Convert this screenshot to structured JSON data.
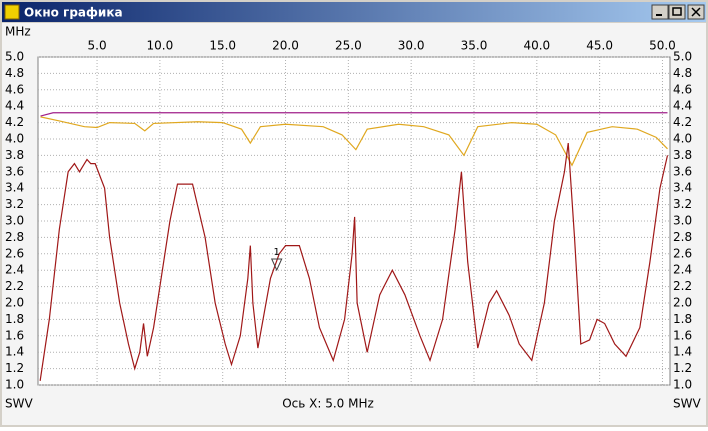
{
  "window": {
    "title": "Окно графика"
  },
  "chart_data": {
    "type": "line",
    "x_label": "MHz",
    "y_label": "SWV",
    "status": "Ось X: 5.0 MHz",
    "xlim": [
      0.3,
      50.6
    ],
    "ylim": [
      1.0,
      5.0
    ],
    "xticks": [
      {
        "value": 5,
        "label": "5.0"
      },
      {
        "value": 10,
        "label": "10.0"
      },
      {
        "value": 15,
        "label": "15.0"
      },
      {
        "value": 20,
        "label": "20.0"
      },
      {
        "value": 25,
        "label": "25.0"
      },
      {
        "value": 30,
        "label": "30.0"
      },
      {
        "value": 35,
        "label": "35.0"
      },
      {
        "value": 40,
        "label": "40.0"
      },
      {
        "value": 45,
        "label": "45.0"
      },
      {
        "value": 50,
        "label": "50.0"
      }
    ],
    "yticks": [
      {
        "value": 1,
        "label": "1.0"
      },
      1.2,
      1.4,
      1.6,
      1.8,
      {
        "value": 2,
        "label": "2.0"
      },
      2.2,
      2.4,
      2.6,
      2.8,
      {
        "value": 3,
        "label": "3.0"
      },
      3.2,
      3.4,
      3.6,
      3.8,
      {
        "value": 4,
        "label": "4.0"
      },
      4.2,
      4.4,
      4.6,
      4.8,
      {
        "value": 5,
        "label": "5.0"
      }
    ],
    "grid": true,
    "series": [
      {
        "color": "#a01818",
        "x": [
          0.47,
          1.2,
          2.0,
          2.7,
          3.2,
          3.6,
          4.0,
          4.2,
          4.5,
          4.85,
          5.6,
          6.0,
          6.8,
          7.5,
          8.0,
          8.4,
          8.7,
          9.0,
          9.5,
          10.0,
          10.8,
          11.4,
          12.6,
          13.6,
          14.4,
          15.2,
          15.7,
          16.4,
          17.0,
          17.2,
          17.4,
          17.8,
          18.8,
          19.5,
          20.0,
          21.1,
          21.9,
          22.7,
          23.8,
          24.7,
          25.3,
          25.5,
          25.7,
          26.5,
          27.5,
          28.5,
          29.5,
          30.7,
          31.5,
          32.5,
          33.5,
          34.0,
          34.5,
          35.3,
          36.2,
          36.8,
          37.8,
          38.6,
          39.6,
          40.6,
          41.4,
          42.2,
          42.5,
          43.0,
          43.5,
          44.2,
          44.8,
          45.4,
          46.2,
          47.1,
          48.2,
          49.0,
          49.8,
          50.4
        ],
        "values": [
          1.05,
          1.8,
          2.9,
          3.6,
          3.7,
          3.6,
          3.7,
          3.75,
          3.7,
          3.7,
          3.4,
          2.8,
          2.0,
          1.5,
          1.2,
          1.4,
          1.75,
          1.35,
          1.7,
          2.2,
          3.0,
          3.45,
          3.45,
          2.8,
          2.0,
          1.5,
          1.25,
          1.6,
          2.3,
          2.7,
          2.0,
          1.45,
          2.3,
          2.6,
          2.7,
          2.7,
          2.3,
          1.7,
          1.3,
          1.8,
          2.6,
          3.05,
          2.0,
          1.4,
          2.1,
          2.4,
          2.1,
          1.6,
          1.3,
          1.8,
          2.9,
          3.6,
          2.5,
          1.45,
          2.0,
          2.15,
          1.85,
          1.5,
          1.3,
          2.0,
          3.0,
          3.6,
          3.95,
          2.8,
          1.5,
          1.55,
          1.8,
          1.75,
          1.5,
          1.35,
          1.7,
          2.5,
          3.4,
          3.8
        ]
      },
      {
        "color": "#e0a820",
        "x": [
          0.5,
          2,
          4,
          5,
          6,
          8,
          8.8,
          9.5,
          13,
          15,
          16.5,
          17.2,
          18,
          20,
          23,
          24.5,
          25.6,
          26.5,
          29,
          31,
          33,
          34.2,
          35.3,
          38,
          40,
          41.5,
          42.8,
          44,
          46,
          48,
          49.5,
          50.4
        ],
        "values": [
          4.27,
          4.22,
          4.15,
          4.14,
          4.2,
          4.19,
          4.1,
          4.19,
          4.21,
          4.2,
          4.12,
          3.95,
          4.15,
          4.18,
          4.15,
          4.05,
          3.87,
          4.12,
          4.18,
          4.15,
          4.05,
          3.8,
          4.15,
          4.2,
          4.18,
          4.05,
          3.68,
          4.08,
          4.15,
          4.12,
          4.02,
          3.88
        ]
      },
      {
        "color": "#a0208a",
        "x": [
          0.5,
          1.5,
          10,
          20,
          30,
          40,
          50.4
        ],
        "values": [
          4.28,
          4.32,
          4.32,
          4.32,
          4.32,
          4.32,
          4.32
        ]
      }
    ],
    "markers": [
      {
        "x": 19.3,
        "y": 2.5,
        "label": "1"
      }
    ]
  }
}
